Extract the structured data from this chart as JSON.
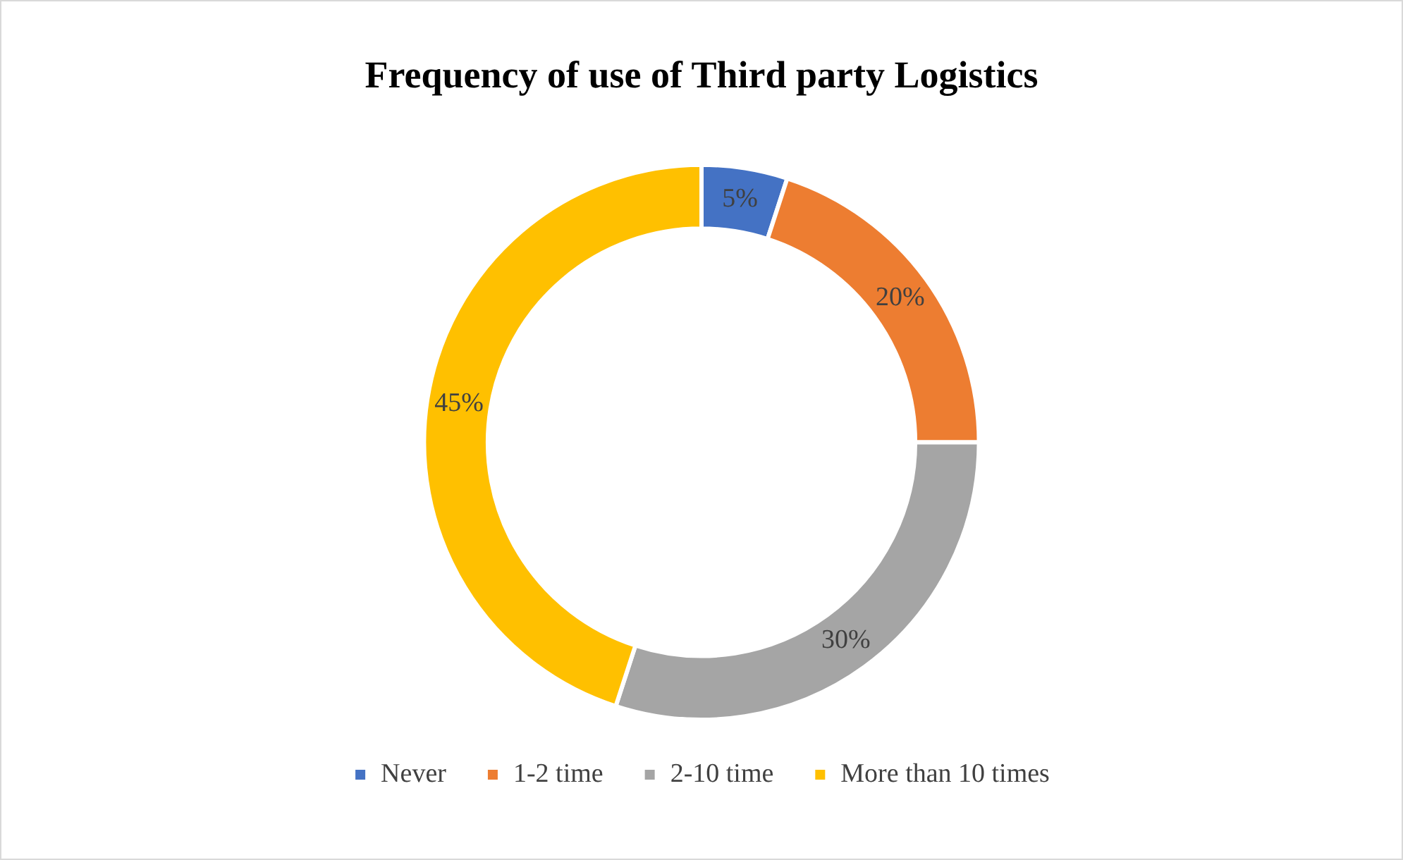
{
  "chart_data": {
    "type": "donut",
    "title": "Frequency of use of Third party Logistics",
    "categories": [
      "Never",
      "1-2 time",
      "2-10 time",
      "More than 10 times"
    ],
    "values": [
      5,
      20,
      30,
      45
    ],
    "value_labels": [
      "5%",
      "20%",
      "30%",
      "45%"
    ],
    "colors": [
      "#4472c4",
      "#ed7d31",
      "#a5a5a5",
      "#ffc000"
    ],
    "legend": "bottom"
  }
}
